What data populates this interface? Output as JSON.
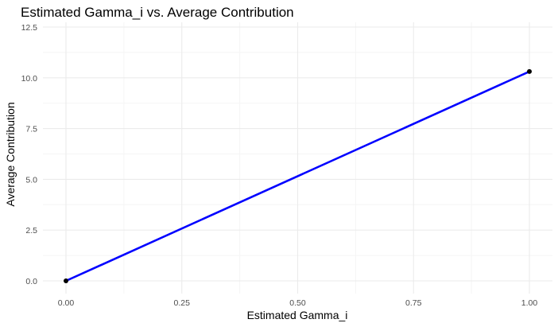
{
  "chart_data": {
    "type": "line",
    "title": "Estimated Gamma_i vs. Average Contribution",
    "xlabel": "Estimated Gamma_i",
    "ylabel": "Average Contribution",
    "x": [
      0.0,
      1.0
    ],
    "series": [
      {
        "name": "Average Contribution",
        "values": [
          0.0,
          10.31
        ],
        "line_color": "#0000ff",
        "point_color": "#000000"
      }
    ],
    "xlim": [
      -0.05,
      1.05
    ],
    "ylim": [
      -0.5,
      12.5
    ],
    "x_ticks": [
      "0.00",
      "0.25",
      "0.50",
      "0.75",
      "1.00"
    ],
    "y_ticks": [
      "0.0",
      "2.5",
      "5.0",
      "7.5",
      "10.0",
      "12.5"
    ],
    "grid": true,
    "legend": "none"
  },
  "colors": {
    "line": "#0000ff",
    "point": "#000000",
    "grid_major": "#ebebeb",
    "grid_minor": "#f5f5f5"
  }
}
